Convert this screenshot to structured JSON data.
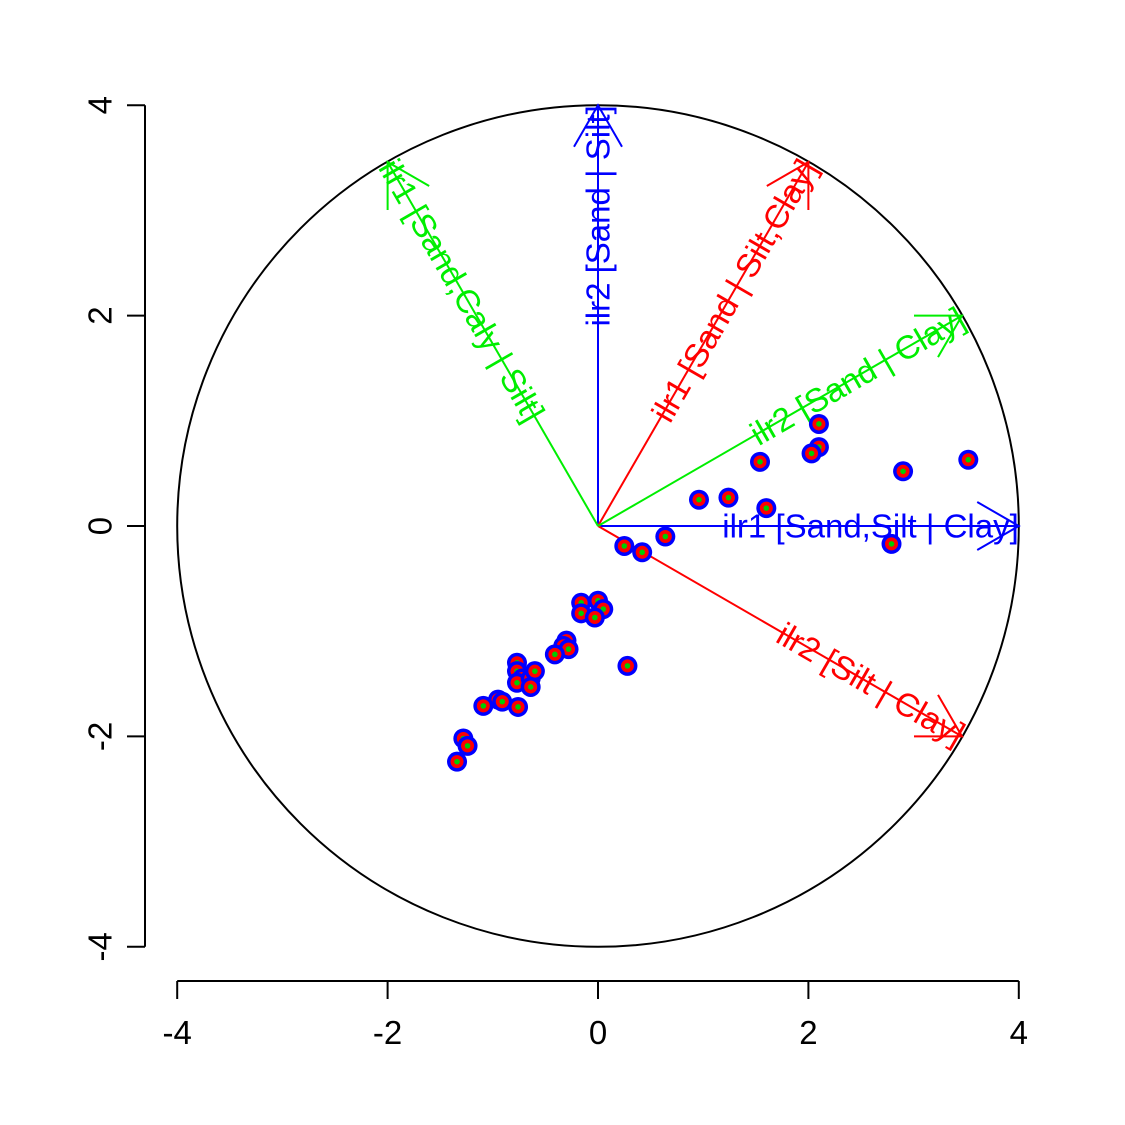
{
  "chart_data": {
    "type": "scatter",
    "title": "",
    "xlabel": "",
    "ylabel": "",
    "xlim": [
      -4.1,
      4.1
    ],
    "ylim": [
      -4.1,
      4.1
    ],
    "x_ticks": [
      -4,
      -2,
      0,
      2,
      4
    ],
    "y_ticks": [
      -4,
      -2,
      0,
      2,
      4
    ],
    "x_tick_labels": [
      "-4",
      "-2",
      "0",
      "2",
      "4"
    ],
    "y_tick_labels": [
      "-4",
      "-2",
      "0",
      "2",
      "4"
    ],
    "grid": false,
    "circle": {
      "center": [
        0,
        0
      ],
      "radius": 4
    },
    "point_colors": {
      "outer": "#0000ff",
      "middle": "#ff0000",
      "inner": "#00cc00"
    },
    "arrows": [
      {
        "label": "ilr1 [Sand,Silt | Clay]",
        "color": "#0000ff",
        "end": [
          4.0,
          0.0
        ]
      },
      {
        "label": "ilr2 [Sand | Silt]",
        "color": "#0000ff",
        "end": [
          0.0,
          4.0
        ]
      },
      {
        "label": "ilr1 [Sand | Silt,Clay]",
        "color": "#ff0000",
        "end": [
          2.0,
          3.46
        ]
      },
      {
        "label": "ilr2 [Silt | Clay]",
        "color": "#ff0000",
        "end": [
          3.46,
          -2.0
        ]
      },
      {
        "label": "ilr1 [Sand,Caly | Silt]",
        "color": "#00ee00",
        "end": [
          -2.0,
          3.46
        ]
      },
      {
        "label": "ilr2 [Sand | Clay]",
        "color": "#00ee00",
        "end": [
          3.46,
          2.0
        ]
      }
    ],
    "points": [
      [
        2.1,
        0.97
      ],
      [
        2.1,
        0.75
      ],
      [
        2.03,
        0.69
      ],
      [
        1.54,
        0.61
      ],
      [
        2.9,
        0.52
      ],
      [
        3.52,
        0.63
      ],
      [
        0.96,
        0.25
      ],
      [
        1.24,
        0.27
      ],
      [
        1.6,
        0.17
      ],
      [
        2.79,
        -0.17
      ],
      [
        0.25,
        -0.19
      ],
      [
        0.42,
        -0.25
      ],
      [
        0.64,
        -0.1
      ],
      [
        -0.16,
        -0.73
      ],
      [
        -0.16,
        -0.83
      ],
      [
        0.0,
        -0.71
      ],
      [
        0.05,
        -0.79
      ],
      [
        -0.03,
        -0.87
      ],
      [
        0.28,
        -1.33
      ],
      [
        -0.3,
        -1.09
      ],
      [
        -0.33,
        -1.14
      ],
      [
        -0.28,
        -1.17
      ],
      [
        -0.41,
        -1.22
      ],
      [
        -0.77,
        -1.3
      ],
      [
        -0.77,
        -1.38
      ],
      [
        -0.72,
        -1.45
      ],
      [
        -0.77,
        -1.49
      ],
      [
        -0.64,
        -1.45
      ],
      [
        -0.6,
        -1.38
      ],
      [
        -0.64,
        -1.53
      ],
      [
        -0.95,
        -1.65
      ],
      [
        -0.91,
        -1.67
      ],
      [
        -1.09,
        -1.71
      ],
      [
        -0.76,
        -1.72
      ],
      [
        -1.28,
        -2.02
      ],
      [
        -1.24,
        -2.09
      ],
      [
        -1.34,
        -2.24
      ]
    ]
  }
}
